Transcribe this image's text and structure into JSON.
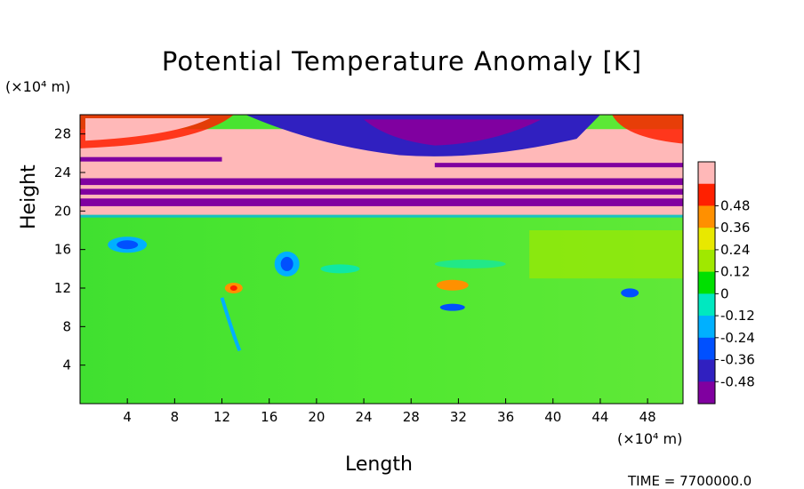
{
  "chart_data": {
    "type": "heatmap",
    "title": "Potential Temperature Anomaly [K]",
    "xlabel": "Length",
    "ylabel": "Height",
    "x_unit": "(×10⁴ m)",
    "y_unit": "(×10⁴ m)",
    "xlim": [
      0,
      51
    ],
    "ylim": [
      0,
      30
    ],
    "x_ticks": [
      4,
      8,
      12,
      16,
      20,
      24,
      28,
      32,
      36,
      40,
      44,
      48
    ],
    "y_ticks": [
      4,
      8,
      12,
      16,
      20,
      24,
      28
    ],
    "colorbar": {
      "levels": [
        -0.48,
        -0.36,
        -0.24,
        -0.12,
        0,
        0.12,
        0.24,
        0.36,
        0.48
      ],
      "labels": [
        "-0.48",
        "-0.36",
        "-0.24",
        "-0.12",
        "0",
        "0.12",
        "0.24",
        "0.36",
        "0.48"
      ],
      "colors": [
        "#8000a0",
        "#3020c0",
        "#0050ff",
        "#00b0ff",
        "#00e8c0",
        "#00e000",
        "#a0e800",
        "#e8e800",
        "#ff9000",
        "#ff2000",
        "#ffb8b8"
      ]
    },
    "footer_text": "TIME = 7700000.0"
  }
}
